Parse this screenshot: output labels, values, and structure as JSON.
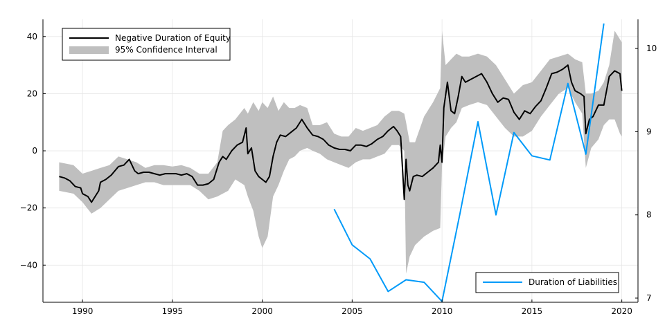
{
  "chart_data": {
    "type": "line",
    "title": "",
    "xlabel": "",
    "ylabel": "",
    "y2label": "",
    "xlim": [
      1987.8,
      2020.9
    ],
    "ylim": [
      -53,
      46
    ],
    "y2lim": [
      6.95,
      10.35
    ],
    "grid": true,
    "x_ticks": [
      1990,
      1995,
      2000,
      2005,
      2010,
      2015,
      2020
    ],
    "y_ticks": [
      -40,
      -20,
      0,
      20,
      40
    ],
    "y2_ticks": [
      7,
      8,
      9,
      10
    ],
    "legends": [
      {
        "placement": "top-left",
        "entries": [
          "Negative Duration of Equity",
          "95% Confidence Interval"
        ]
      },
      {
        "placement": "bottom-right",
        "entries": [
          "Duration of Liabilities"
        ]
      }
    ],
    "series": [
      {
        "name": "Negative Duration of Equity",
        "axis": "left",
        "color": "#000000",
        "x": [
          1988.7,
          1989.0,
          1989.3,
          1989.6,
          1989.9,
          1990.0,
          1990.3,
          1990.5,
          1990.7,
          1990.9,
          1991.0,
          1991.3,
          1991.6,
          1991.8,
          1992.0,
          1992.3,
          1992.6,
          1992.9,
          1993.1,
          1993.4,
          1993.7,
          1994.0,
          1994.3,
          1994.6,
          1994.9,
          1995.2,
          1995.5,
          1995.8,
          1996.1,
          1996.4,
          1996.7,
          1997.0,
          1997.3,
          1997.6,
          1997.8,
          1998.0,
          1998.3,
          1998.6,
          1998.9,
          1999.1,
          1999.2,
          1999.4,
          1999.6,
          1999.8,
          2000.0,
          2000.2,
          2000.4,
          2000.6,
          2000.8,
          2001.0,
          2001.3,
          2001.6,
          2001.9,
          2002.2,
          2002.5,
          2002.8,
          2003.1,
          2003.4,
          2003.7,
          2004.0,
          2004.3,
          2004.6,
          2004.9,
          2005.2,
          2005.5,
          2005.8,
          2006.1,
          2006.4,
          2006.7,
          2007.0,
          2007.3,
          2007.5,
          2007.7,
          2007.9,
          2008.0,
          2008.1,
          2008.2,
          2008.4,
          2008.6,
          2008.9,
          2009.2,
          2009.5,
          2009.8,
          2009.9,
          2010.0,
          2010.1,
          2010.3,
          2010.5,
          2010.7,
          2010.9,
          2011.1,
          2011.3,
          2011.6,
          2011.9,
          2012.2,
          2012.5,
          2012.8,
          2013.1,
          2013.4,
          2013.7,
          2014.0,
          2014.3,
          2014.6,
          2014.9,
          2015.2,
          2015.5,
          2015.8,
          2016.1,
          2016.4,
          2016.7,
          2017.0,
          2017.2,
          2017.4,
          2017.7,
          2017.9,
          2018.0,
          2018.2,
          2018.4,
          2018.7,
          2019.0,
          2019.3,
          2019.6,
          2019.9,
          2020.0
        ],
        "values": [
          -9,
          -9.5,
          -10.5,
          -12.5,
          -13,
          -15,
          -16,
          -18,
          -16,
          -14,
          -11,
          -10,
          -8.5,
          -7,
          -5.5,
          -5,
          -3,
          -7,
          -8,
          -7.5,
          -7.5,
          -8,
          -8.5,
          -8,
          -8,
          -8,
          -8.5,
          -8,
          -9,
          -12,
          -12,
          -11.5,
          -10,
          -4,
          -2,
          -3,
          0,
          2,
          3,
          8,
          -1,
          1,
          -7,
          -9,
          -10,
          -11,
          -9,
          -2,
          3,
          5.5,
          5,
          6.5,
          8,
          11,
          8,
          5.5,
          5,
          4,
          2,
          1,
          0.5,
          0.5,
          0,
          2,
          2,
          1.5,
          2.5,
          4,
          5,
          7,
          8.5,
          7,
          5,
          -17,
          -3,
          -12,
          -14,
          -9,
          -8.5,
          -9,
          -7.5,
          -6,
          -4,
          2,
          -4,
          15,
          24,
          14,
          13,
          19,
          26,
          24,
          25,
          26,
          27,
          24,
          20,
          17,
          18.5,
          18,
          13.5,
          11,
          14,
          13,
          15.5,
          17.5,
          22,
          27,
          27.5,
          28.5,
          30,
          24,
          21,
          20,
          19,
          6,
          11,
          12,
          16,
          16,
          26,
          28,
          27,
          21
        ]
      },
      {
        "name": "95% Confidence Interval",
        "axis": "left",
        "color": "#bfbfbf",
        "x": [
          1988.7,
          1989.5,
          1990.0,
          1990.5,
          1991.0,
          1991.5,
          1992.0,
          1992.5,
          1993.0,
          1993.5,
          1994.0,
          1994.5,
          1995.0,
          1995.5,
          1996.0,
          1996.5,
          1997.0,
          1997.5,
          1997.8,
          1998.1,
          1998.5,
          1999.0,
          1999.2,
          1999.5,
          1999.8,
          2000.0,
          2000.3,
          2000.6,
          2000.9,
          2001.2,
          2001.5,
          2001.8,
          2002.1,
          2002.5,
          2002.8,
          2003.2,
          2003.6,
          2004.0,
          2004.4,
          2004.8,
          2005.2,
          2005.6,
          2006.0,
          2006.4,
          2006.8,
          2007.2,
          2007.6,
          2007.9,
          2008.0,
          2008.2,
          2008.5,
          2009.0,
          2009.5,
          2009.9,
          2010.0,
          2010.2,
          2010.5,
          2010.8,
          2011.1,
          2011.5,
          2012.0,
          2012.5,
          2013.0,
          2013.5,
          2014.0,
          2014.5,
          2015.0,
          2015.5,
          2016.0,
          2016.5,
          2017.0,
          2017.4,
          2017.8,
          2018.0,
          2018.3,
          2018.7,
          2019.0,
          2019.3,
          2019.6,
          2019.9,
          2020.0
        ],
        "upper": [
          -4,
          -5,
          -8,
          -7,
          -6,
          -5,
          -2,
          -3,
          -4,
          -6,
          -5,
          -5,
          -5.5,
          -5,
          -6,
          -8,
          -8,
          -4,
          7,
          9,
          11,
          15,
          13,
          17,
          14,
          17,
          15,
          19,
          14,
          17,
          15,
          15,
          16,
          15,
          9,
          9,
          10,
          6,
          5,
          5,
          8,
          7,
          8,
          9,
          12,
          14,
          14,
          13,
          10,
          3,
          3,
          12,
          17,
          22,
          42,
          30,
          32,
          34,
          33,
          33,
          34,
          33,
          30,
          25,
          20,
          23,
          24,
          28,
          32,
          33,
          34,
          32,
          31,
          20,
          20,
          21,
          24,
          30,
          42,
          39,
          38
        ],
        "lower": [
          -14,
          -15,
          -18,
          -22,
          -20,
          -17,
          -14,
          -13,
          -12,
          -11,
          -11,
          -12,
          -12,
          -12,
          -12,
          -14,
          -17,
          -16,
          -15,
          -14,
          -10,
          -12,
          -16,
          -21,
          -30,
          -34,
          -30,
          -16,
          -12,
          -7,
          -3,
          -2,
          0,
          1,
          0,
          -1,
          -3,
          -4,
          -5,
          -6,
          -4,
          -3,
          -3,
          -2,
          -1,
          2,
          2,
          0,
          -43,
          -37,
          -33,
          -30,
          -28,
          -27,
          -5,
          5,
          8,
          10,
          15,
          16,
          17,
          16,
          12,
          8,
          5,
          5,
          7,
          12,
          16,
          20,
          22,
          17,
          13,
          -6,
          1,
          4,
          9,
          11,
          11,
          6,
          5
        ]
      },
      {
        "name": "Duration of Liabilities",
        "axis": "right",
        "color": "#009af9",
        "x": [
          2004,
          2005,
          2006,
          2007,
          2008,
          2009,
          2010,
          2011,
          2012,
          2013,
          2014,
          2015,
          2016,
          2017,
          2018,
          2019
        ],
        "values": [
          8.07,
          7.64,
          7.47,
          7.08,
          7.22,
          7.19,
          6.96,
          8.02,
          9.12,
          8.0,
          8.99,
          8.71,
          8.66,
          9.58,
          8.73,
          10.3
        ]
      }
    ]
  }
}
